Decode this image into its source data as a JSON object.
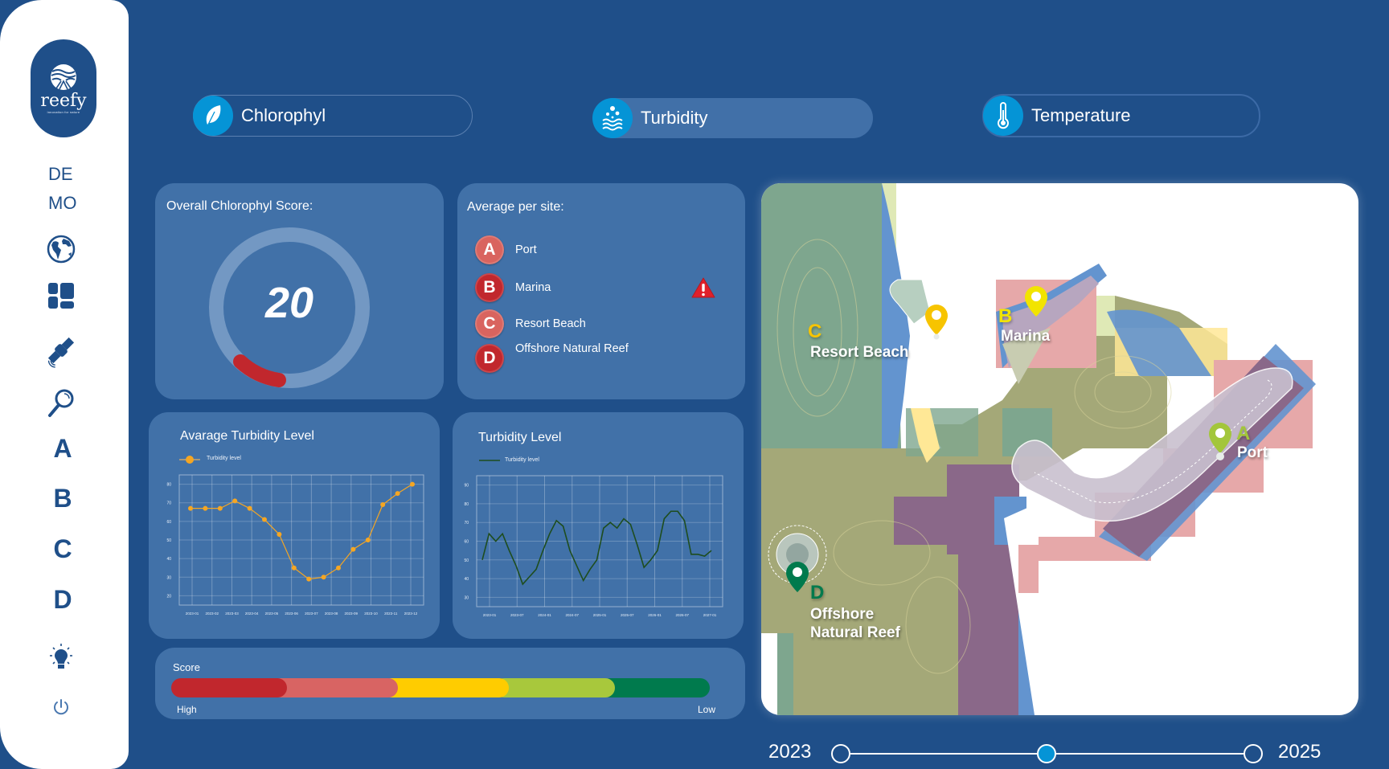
{
  "sidebar": {
    "logo": {
      "name": "reefy",
      "tagline": "innovation for nature"
    },
    "demo_line1": "DE",
    "demo_line2": "MO",
    "icons": [
      "globe-icon",
      "dashboard-icon",
      "satellite-icon",
      "search-icon"
    ],
    "sites": [
      "A",
      "B",
      "C",
      "D"
    ],
    "bottom_icons": [
      "lightbulb-icon",
      "power-icon"
    ]
  },
  "metrics": {
    "tabs": [
      {
        "label": "Chlorophyl",
        "icon": "leaf-icon",
        "state": "outlined"
      },
      {
        "label": "Turbidity",
        "icon": "water-bubbles-icon",
        "state": "selected"
      },
      {
        "label": "Temperature",
        "icon": "thermometer-icon",
        "state": "outlined"
      }
    ]
  },
  "score_card": {
    "title": "Overall Chlorophyl Score:",
    "value": "20",
    "progress_color": "#c1272d"
  },
  "sites_card": {
    "title": "Average per site:",
    "sites": [
      {
        "letter": "A",
        "name": "Port",
        "color": "#d9645f",
        "alert": false
      },
      {
        "letter": "B",
        "name": "Marina",
        "color": "#c1272d",
        "alert": true
      },
      {
        "letter": "C",
        "name": "Resort Beach",
        "color": "#d9645f",
        "alert": false
      },
      {
        "letter": "D",
        "name": "Offshore Natural Reef",
        "color": "#c1272d",
        "alert": false
      }
    ]
  },
  "score_legend": {
    "title": "Score",
    "high_label": "High",
    "low_label": "Low",
    "colors": [
      "#c1272d",
      "#d86463",
      "#ffcc00",
      "#a8c83c",
      "#007a4d"
    ]
  },
  "map": {
    "sites": [
      {
        "letter": "A",
        "name": "Port",
        "pin_color": "#a3c63b"
      },
      {
        "letter": "B",
        "name": "Marina",
        "pin_color": "#f2e400"
      },
      {
        "letter": "C",
        "name": "Resort Beach",
        "pin_color": "#f7c400"
      },
      {
        "letter": "D",
        "name_line1": "Offshore",
        "name_line2": "Natural Reef",
        "pin_color": "#007a4d"
      }
    ]
  },
  "timeline": {
    "start_label": "2023",
    "end_label": "2025",
    "stops": 3,
    "selected_index": 1
  },
  "chart_data": [
    {
      "type": "line",
      "title": "Avarage Turbidity Level",
      "legend": [
        "Turbidity level"
      ],
      "legend_position": "top-left",
      "xlabel": "",
      "ylabel": "",
      "grid": true,
      "ylim": [
        15,
        85
      ],
      "yticks": [
        20,
        30,
        40,
        50,
        60,
        70,
        80
      ],
      "xtick_labels": [
        "2023-01",
        "2023-02",
        "2023-03",
        "2023-04",
        "2023-05",
        "2023-06",
        "2023-07",
        "2023-08",
        "2023-09",
        "2023-10",
        "2023-11",
        "2023-12"
      ],
      "series": [
        {
          "name": "Turbidity level",
          "color": "#f5a623",
          "values": [
            67,
            67,
            67,
            71,
            67,
            61,
            53,
            35,
            29,
            30,
            35,
            45,
            50,
            69,
            75,
            80
          ]
        }
      ]
    },
    {
      "type": "line",
      "title": "Turbidity Level",
      "legend": [
        "Turbidity level"
      ],
      "legend_position": "top-left",
      "xlabel": "",
      "ylabel": "",
      "grid": true,
      "ylim": [
        25,
        95
      ],
      "yticks": [
        30,
        40,
        50,
        60,
        70,
        80,
        90
      ],
      "xtick_labels": [
        "2023-01",
        "2023-07",
        "2024-01",
        "2024-07",
        "2025-01",
        "2025-07",
        "2026-01",
        "2026-07",
        "2027-01"
      ],
      "series": [
        {
          "name": "Turbidity level",
          "color": "#1e4d1e",
          "values": [
            50,
            64,
            60,
            64,
            55,
            47,
            37,
            41,
            45,
            55,
            64,
            71,
            68,
            55,
            47,
            39,
            45,
            50,
            67,
            70,
            67,
            72,
            69,
            58,
            46,
            50,
            55,
            72,
            76,
            76,
            71,
            53,
            53,
            52,
            55
          ]
        }
      ]
    }
  ]
}
